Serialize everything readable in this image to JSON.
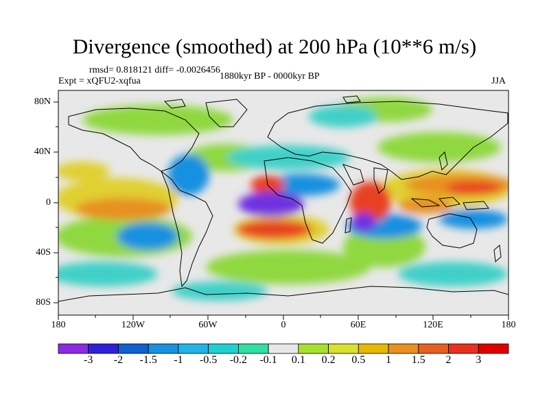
{
  "title": "Divergence (smoothed) at 200 hPa (10**6 m/s)",
  "stats": "rmsd= 0.818121 diff= -0.0026456",
  "experiment": "Expt = xQFU2-xqfua",
  "period": "1880kyr BP - 0000kyr BP",
  "season": "JJA",
  "axes": {
    "y_labels": [
      "80N",
      "40N",
      "0",
      "40S",
      "80S"
    ],
    "x_labels": [
      "180",
      "120W",
      "60W",
      "0",
      "60E",
      "120E",
      "180"
    ]
  },
  "colorbar": {
    "labels": [
      "-3",
      "-2",
      "-1.5",
      "-1",
      "-0.5",
      "-0.2",
      "-0.1",
      "0.1",
      "0.2",
      "0.5",
      "1",
      "1.5",
      "2",
      "3"
    ],
    "colors": [
      "#8a2be2",
      "#3020d8",
      "#1060d0",
      "#1890e0",
      "#20b4e8",
      "#20d0d0",
      "#30e0a0",
      "#e8e8e8",
      "#a8e030",
      "#d8e030",
      "#e8b800",
      "#e89020",
      "#e86020",
      "#e83020",
      "#e00000"
    ]
  },
  "map_colors": {
    "ocean": "#e8e8e8",
    "strong_neg": "#7030e0",
    "neg": "#1890e0",
    "weak_neg": "#40d0c8",
    "green": "#90d840",
    "yellow": "#e0d030",
    "orange": "#e89020",
    "red": "#e84020",
    "coast": "#000000"
  }
}
